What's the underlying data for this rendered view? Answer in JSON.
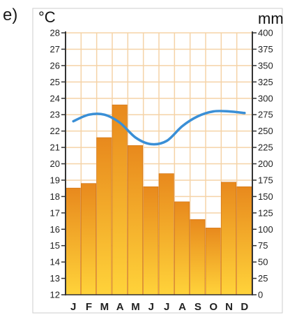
{
  "figure_label": "e)",
  "chart_data": {
    "type": "bar",
    "categories": [
      "J",
      "F",
      "M",
      "A",
      "M",
      "J",
      "J",
      "A",
      "S",
      "O",
      "N",
      "D"
    ],
    "series": [
      {
        "kind": "bar",
        "axis": "right",
        "values": [
          163,
          170,
          240,
          290,
          228,
          165,
          185,
          142,
          115,
          102,
          172,
          165
        ]
      },
      {
        "kind": "line",
        "axis": "left",
        "values": [
          22.6,
          23.0,
          23.0,
          22.5,
          21.6,
          21.2,
          21.4,
          22.3,
          22.9,
          23.2,
          23.2,
          23.1
        ]
      }
    ],
    "left_axis": {
      "unit": "°C",
      "ylim": [
        12,
        28
      ],
      "ticks": [
        "12",
        "13",
        "14",
        "15",
        "16",
        "17",
        "18",
        "19",
        "20",
        "21",
        "22",
        "23",
        "24",
        "25",
        "26",
        "27",
        "28"
      ]
    },
    "right_axis": {
      "unit": "mm",
      "ylim": [
        0,
        400
      ],
      "ticks": [
        "0",
        "25",
        "50",
        "75",
        "100",
        "125",
        "150",
        "175",
        "200",
        "225",
        "250",
        "275",
        "300",
        "325",
        "350",
        "375",
        "400"
      ]
    },
    "grid": true,
    "colors": {
      "grid": "#f5d3a7",
      "bar_top": "#e8891d",
      "bar_bottom": "#ffd33a",
      "line": "#3a8fd6",
      "axis": "#333333"
    }
  }
}
